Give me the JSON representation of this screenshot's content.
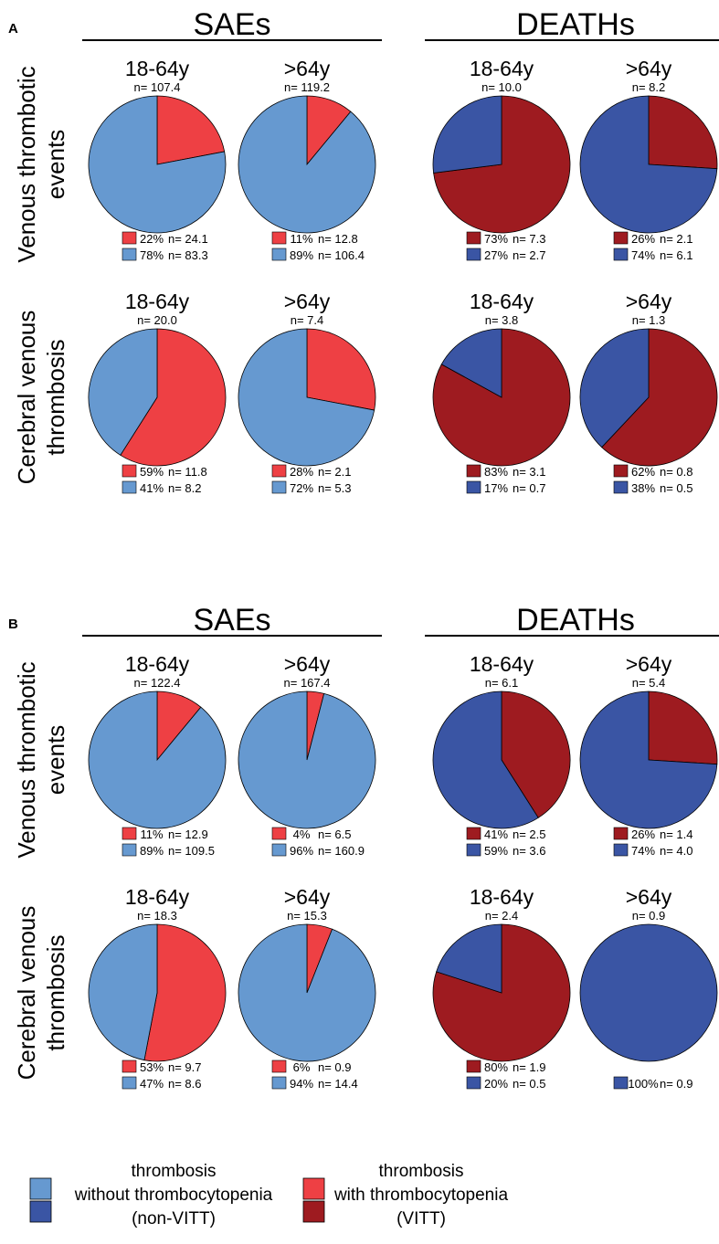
{
  "colors": {
    "sae_vitt": "#EE4044",
    "sae_nonvitt": "#6699D0",
    "death_vitt": "#9E1B20",
    "death_nonvitt": "#3A55A4"
  },
  "legend": {
    "nonvitt": [
      "thrombosis",
      "without thrombocytopenia",
      "(non-VITT)"
    ],
    "vitt": [
      "thrombosis",
      "with thrombocytopenia",
      "(VITT)"
    ]
  },
  "chart_data": [
    {
      "type": "pie",
      "panel": "A",
      "sections": [
        "SAEs",
        "DEATHs"
      ],
      "rows": [
        {
          "label": [
            "Venous thrombotic",
            "events"
          ],
          "pies": [
            {
              "kind": "sae",
              "age": "18-64y",
              "n_label": "n= 107.4",
              "slices": [
                {
                  "series": "vitt",
                  "pct": 22,
                  "pct_label": "22%",
                  "n_label": "n= 24.1"
                },
                {
                  "series": "nonvitt",
                  "pct": 78,
                  "pct_label": "78%",
                  "n_label": "n= 83.3"
                }
              ]
            },
            {
              "kind": "sae",
              "age": ">64y",
              "n_label": "n= 119.2",
              "slices": [
                {
                  "series": "vitt",
                  "pct": 11,
                  "pct_label": "11%",
                  "n_label": "n= 12.8"
                },
                {
                  "series": "nonvitt",
                  "pct": 89,
                  "pct_label": "89%",
                  "n_label": "n= 106.4"
                }
              ]
            },
            {
              "kind": "death",
              "age": "18-64y",
              "n_label": "n= 10.0",
              "slices": [
                {
                  "series": "vitt",
                  "pct": 73,
                  "pct_label": "73%",
                  "n_label": "n= 7.3"
                },
                {
                  "series": "nonvitt",
                  "pct": 27,
                  "pct_label": "27%",
                  "n_label": "n= 2.7"
                }
              ]
            },
            {
              "kind": "death",
              "age": ">64y",
              "n_label": "n= 8.2",
              "slices": [
                {
                  "series": "vitt",
                  "pct": 26,
                  "pct_label": "26%",
                  "n_label": "n= 2.1"
                },
                {
                  "series": "nonvitt",
                  "pct": 74,
                  "pct_label": "74%",
                  "n_label": "n= 6.1"
                }
              ]
            }
          ]
        },
        {
          "label": [
            "Cerebral venous",
            "thrombosis"
          ],
          "pies": [
            {
              "kind": "sae",
              "age": "18-64y",
              "n_label": "n= 20.0",
              "slices": [
                {
                  "series": "vitt",
                  "pct": 59,
                  "pct_label": "59%",
                  "n_label": "n= 11.8"
                },
                {
                  "series": "nonvitt",
                  "pct": 41,
                  "pct_label": "41%",
                  "n_label": "n= 8.2"
                }
              ]
            },
            {
              "kind": "sae",
              "age": ">64y",
              "n_label": "n= 7.4",
              "slices": [
                {
                  "series": "vitt",
                  "pct": 28,
                  "pct_label": "28%",
                  "n_label": "n= 2.1"
                },
                {
                  "series": "nonvitt",
                  "pct": 72,
                  "pct_label": "72%",
                  "n_label": "n= 5.3"
                }
              ]
            },
            {
              "kind": "death",
              "age": "18-64y",
              "n_label": "n= 3.8",
              "slices": [
                {
                  "series": "vitt",
                  "pct": 83,
                  "pct_label": "83%",
                  "n_label": "n= 3.1"
                },
                {
                  "series": "nonvitt",
                  "pct": 17,
                  "pct_label": "17%",
                  "n_label": "n= 0.7"
                }
              ]
            },
            {
              "kind": "death",
              "age": ">64y",
              "n_label": "n= 1.3",
              "slices": [
                {
                  "series": "vitt",
                  "pct": 62,
                  "pct_label": "62%",
                  "n_label": "n= 0.8"
                },
                {
                  "series": "nonvitt",
                  "pct": 38,
                  "pct_label": "38%",
                  "n_label": "n= 0.5"
                }
              ]
            }
          ]
        }
      ]
    },
    {
      "type": "pie",
      "panel": "B",
      "sections": [
        "SAEs",
        "DEATHs"
      ],
      "rows": [
        {
          "label": [
            "Venous thrombotic",
            "events"
          ],
          "pies": [
            {
              "kind": "sae",
              "age": "18-64y",
              "n_label": "n= 122.4",
              "slices": [
                {
                  "series": "vitt",
                  "pct": 11,
                  "pct_label": "11%",
                  "n_label": "n= 12.9"
                },
                {
                  "series": "nonvitt",
                  "pct": 89,
                  "pct_label": "89%",
                  "n_label": "n= 109.5"
                }
              ]
            },
            {
              "kind": "sae",
              "age": ">64y",
              "n_label": "n= 167.4",
              "slices": [
                {
                  "series": "vitt",
                  "pct": 4,
                  "pct_label": "4%",
                  "n_label": "n= 6.5"
                },
                {
                  "series": "nonvitt",
                  "pct": 96,
                  "pct_label": "96%",
                  "n_label": "n= 160.9"
                }
              ]
            },
            {
              "kind": "death",
              "age": "18-64y",
              "n_label": "n= 6.1",
              "slices": [
                {
                  "series": "vitt",
                  "pct": 41,
                  "pct_label": "41%",
                  "n_label": "n= 2.5"
                },
                {
                  "series": "nonvitt",
                  "pct": 59,
                  "pct_label": "59%",
                  "n_label": "n= 3.6"
                }
              ]
            },
            {
              "kind": "death",
              "age": ">64y",
              "n_label": "n= 5.4",
              "slices": [
                {
                  "series": "vitt",
                  "pct": 26,
                  "pct_label": "26%",
                  "n_label": "n= 1.4"
                },
                {
                  "series": "nonvitt",
                  "pct": 74,
                  "pct_label": "74%",
                  "n_label": "n= 4.0"
                }
              ]
            }
          ]
        },
        {
          "label": [
            "Cerebral venous",
            "thrombosis"
          ],
          "pies": [
            {
              "kind": "sae",
              "age": "18-64y",
              "n_label": "n= 18.3",
              "slices": [
                {
                  "series": "vitt",
                  "pct": 53,
                  "pct_label": "53%",
                  "n_label": "n= 9.7"
                },
                {
                  "series": "nonvitt",
                  "pct": 47,
                  "pct_label": "47%",
                  "n_label": "n= 8.6"
                }
              ]
            },
            {
              "kind": "sae",
              "age": ">64y",
              "n_label": "n= 15.3",
              "slices": [
                {
                  "series": "vitt",
                  "pct": 6,
                  "pct_label": "6%",
                  "n_label": "n= 0.9"
                },
                {
                  "series": "nonvitt",
                  "pct": 94,
                  "pct_label": "94%",
                  "n_label": "n= 14.4"
                }
              ]
            },
            {
              "kind": "death",
              "age": "18-64y",
              "n_label": "n= 2.4",
              "slices": [
                {
                  "series": "vitt",
                  "pct": 80,
                  "pct_label": "80%",
                  "n_label": "n= 1.9"
                },
                {
                  "series": "nonvitt",
                  "pct": 20,
                  "pct_label": "20%",
                  "n_label": "n= 0.5"
                }
              ]
            },
            {
              "kind": "death",
              "age": ">64y",
              "n_label": "n= 0.9",
              "slices": [
                {
                  "series": "nonvitt",
                  "pct": 100,
                  "pct_label": "100%",
                  "n_label": "n= 0.9"
                }
              ]
            }
          ]
        }
      ]
    }
  ]
}
